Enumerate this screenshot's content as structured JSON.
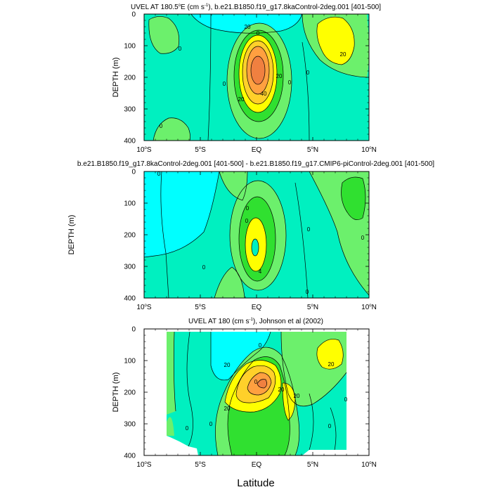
{
  "colors": {
    "c_cyan": "#00ffff",
    "c_aqua": "#00f0c0",
    "c_green_lt": "#6cf06c",
    "c_green": "#30e030",
    "c_yellow": "#ffff00",
    "c_gold": "#ffd02a",
    "c_orange": "#ffa040",
    "c_orange_dk": "#f08040",
    "line": "#000000"
  },
  "axis": {
    "xlabel": "Latitude",
    "ylabel": "DEPTH (m)"
  },
  "chart_data": [
    {
      "type": "contour",
      "title_pre": "UVEL AT 180.5",
      "title_deg": "o",
      "title_mid": "E (cm s",
      "title_sup": "-1",
      "title_post": "), b.e21.B1850.f19_g17.8kaControl-2deg.001 [401-500]",
      "xlim": [
        -10,
        10
      ],
      "ylim": [
        400,
        0
      ],
      "x_ticks": [
        {
          "value": -10,
          "num": "10",
          "hemi": "S"
        },
        {
          "value": -5,
          "num": "5",
          "hemi": "S"
        },
        {
          "value": 0,
          "num": "EQ",
          "hemi": ""
        },
        {
          "value": 5,
          "num": "5",
          "hemi": "N"
        },
        {
          "value": 10,
          "num": "10",
          "hemi": "N"
        }
      ],
      "y_ticks": [
        "0",
        "100",
        "200",
        "300",
        "400"
      ],
      "contour_labels": [
        "20",
        "0",
        "0",
        "0",
        "20",
        "20",
        "40",
        "0",
        "0",
        "0"
      ]
    },
    {
      "type": "contour",
      "title": "b.e21.B1850.f19_g17.8kaControl-2deg.001 [401-500] - b.e21.B1850.f19_g17.CMIP6-piControl-2deg.001 [401-500]",
      "xlim": [
        -10,
        10
      ],
      "ylim": [
        400,
        0
      ],
      "x_ticks": [
        {
          "value": -10,
          "num": "10",
          "hemi": "S"
        },
        {
          "value": -5,
          "num": "5",
          "hemi": "S"
        },
        {
          "value": 0,
          "num": "EQ",
          "hemi": ""
        },
        {
          "value": 5,
          "num": "5",
          "hemi": "N"
        },
        {
          "value": 10,
          "num": "10",
          "hemi": "N"
        }
      ],
      "y_ticks": [
        "0",
        "100",
        "200",
        "300",
        "400"
      ],
      "contour_labels": [
        "0",
        "0",
        "0",
        "0",
        "0",
        "4",
        "0",
        "0"
      ]
    },
    {
      "type": "contour",
      "title_pre": "UVEL AT 180 (cm s",
      "title_sup": "-1",
      "title_post": "), Johnson et al (2002)",
      "xlim": [
        -10,
        10
      ],
      "ylim": [
        400,
        0
      ],
      "x_ticks": [
        {
          "value": -10,
          "num": "10",
          "hemi": "S"
        },
        {
          "value": -5,
          "num": "5",
          "hemi": "S"
        },
        {
          "value": 0,
          "num": "EQ",
          "hemi": ""
        },
        {
          "value": 5,
          "num": "5",
          "hemi": "N"
        },
        {
          "value": 10,
          "num": "10",
          "hemi": "N"
        }
      ],
      "y_ticks": [
        "0",
        "100",
        "200",
        "300",
        "400"
      ],
      "contour_labels": [
        "20",
        "0",
        "20",
        "20",
        "20",
        "0",
        "20",
        "0",
        "0",
        "0",
        "0"
      ]
    }
  ]
}
